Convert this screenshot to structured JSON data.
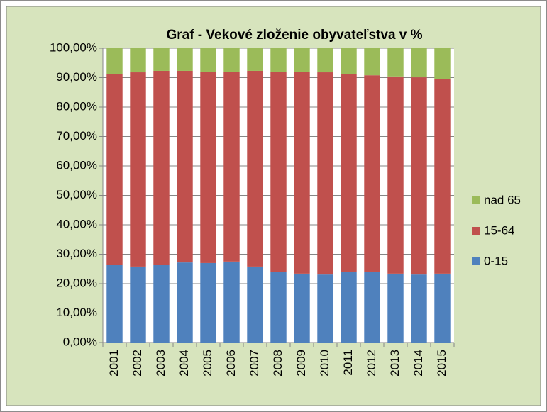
{
  "chart_data": {
    "type": "stacked_bar",
    "title": "Graf - Vekové zloženie obyvateľstva v %",
    "categories": [
      "2001",
      "2002",
      "2003",
      "2004",
      "2005",
      "2006",
      "2007",
      "2008",
      "2009",
      "2010",
      "2011",
      "2012",
      "2013",
      "2014",
      "2015"
    ],
    "series": [
      {
        "name": "0-15",
        "color": "#4f81bd",
        "values": [
          26.3,
          25.8,
          26.3,
          27.2,
          27.0,
          27.5,
          25.8,
          23.9,
          23.4,
          23.1,
          24.1,
          24.1,
          23.4,
          23.1,
          23.4
        ]
      },
      {
        "name": "15-64",
        "color": "#c0504d",
        "values": [
          65.0,
          66.0,
          66.0,
          65.1,
          65.0,
          64.5,
          66.5,
          68.1,
          68.6,
          68.7,
          67.2,
          66.7,
          67.0,
          67.0,
          66.0
        ]
      },
      {
        "name": "nad 65",
        "color": "#9bbb59",
        "values": [
          8.7,
          8.2,
          7.7,
          7.7,
          8.0,
          8.0,
          7.7,
          8.0,
          8.0,
          8.2,
          8.7,
          9.2,
          9.6,
          9.9,
          10.6
        ]
      }
    ],
    "ylim": [
      0,
      100
    ],
    "yticks": [
      {
        "value": 0,
        "label": "0,00%"
      },
      {
        "value": 10,
        "label": "10,00%"
      },
      {
        "value": 20,
        "label": "20,00%"
      },
      {
        "value": 30,
        "label": "30,00%"
      },
      {
        "value": 40,
        "label": "40,00%"
      },
      {
        "value": 50,
        "label": "50,00%"
      },
      {
        "value": 60,
        "label": "60,00%"
      },
      {
        "value": 70,
        "label": "70,00%"
      },
      {
        "value": 80,
        "label": "80,00%"
      },
      {
        "value": 90,
        "label": "90,00%"
      },
      {
        "value": 100,
        "label": "100,00%"
      }
    ],
    "grid": true,
    "legend": "right"
  }
}
